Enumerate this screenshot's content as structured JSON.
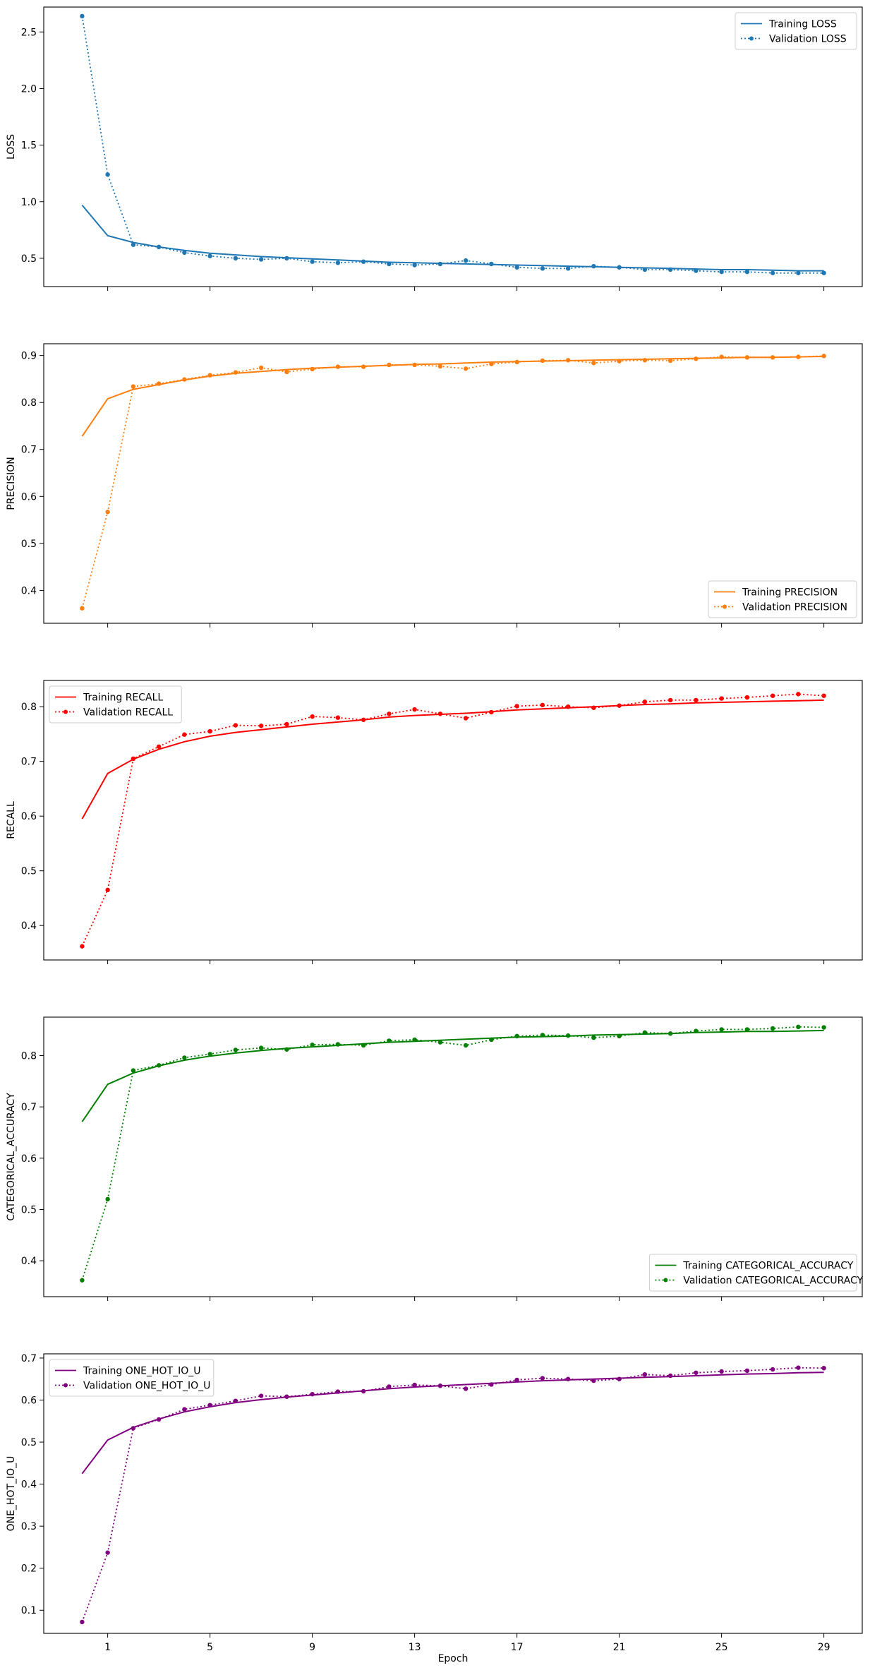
{
  "figure": {
    "xlabel": "Epoch",
    "xticks": [
      1,
      5,
      9,
      13,
      17,
      21,
      25,
      29
    ]
  },
  "chart_data": [
    {
      "type": "line",
      "ylabel": "LOSS",
      "color": "#1f77b4",
      "xlim": [
        -1.5,
        30.5
      ],
      "ylim": [
        0.25,
        2.72
      ],
      "yticks": [
        0.5,
        1.0,
        1.5,
        2.0,
        2.5
      ],
      "ytick_labels": [
        "0.5",
        "1.0",
        "1.5",
        "2.0",
        "2.5"
      ],
      "legend_loc": "upper-right",
      "x": [
        0,
        1,
        2,
        3,
        4,
        5,
        6,
        7,
        8,
        9,
        10,
        11,
        12,
        13,
        14,
        15,
        16,
        17,
        18,
        19,
        20,
        21,
        22,
        23,
        24,
        25,
        26,
        27,
        28,
        29
      ],
      "series": [
        {
          "name": "Training LOSS",
          "style": "solid",
          "values": [
            0.97,
            0.7,
            0.64,
            0.6,
            0.57,
            0.545,
            0.53,
            0.515,
            0.505,
            0.495,
            0.485,
            0.475,
            0.465,
            0.46,
            0.455,
            0.45,
            0.445,
            0.44,
            0.435,
            0.43,
            0.425,
            0.42,
            0.415,
            0.41,
            0.405,
            0.4,
            0.4,
            0.395,
            0.39,
            0.39
          ]
        },
        {
          "name": "Validation LOSS",
          "style": "dotted",
          "values": [
            2.64,
            1.24,
            0.62,
            0.6,
            0.55,
            0.52,
            0.5,
            0.49,
            0.5,
            0.47,
            0.46,
            0.47,
            0.45,
            0.44,
            0.45,
            0.48,
            0.45,
            0.42,
            0.41,
            0.41,
            0.43,
            0.42,
            0.4,
            0.4,
            0.39,
            0.38,
            0.38,
            0.37,
            0.37,
            0.37
          ]
        }
      ]
    },
    {
      "type": "line",
      "ylabel": "PRECISION",
      "color": "#ff7f0e",
      "xlim": [
        -1.5,
        30.5
      ],
      "ylim": [
        0.33,
        0.925
      ],
      "yticks": [
        0.4,
        0.5,
        0.6,
        0.7,
        0.8,
        0.9
      ],
      "ytick_labels": [
        "0.4",
        "0.5",
        "0.6",
        "0.7",
        "0.8",
        "0.9"
      ],
      "legend_loc": "lower-right",
      "x": [
        0,
        1,
        2,
        3,
        4,
        5,
        6,
        7,
        8,
        9,
        10,
        11,
        12,
        13,
        14,
        15,
        16,
        17,
        18,
        19,
        20,
        21,
        22,
        23,
        24,
        25,
        26,
        27,
        28,
        29
      ],
      "series": [
        {
          "name": "Training PRECISION",
          "style": "solid",
          "values": [
            0.728,
            0.808,
            0.828,
            0.838,
            0.848,
            0.856,
            0.862,
            0.866,
            0.87,
            0.873,
            0.875,
            0.877,
            0.879,
            0.881,
            0.882,
            0.884,
            0.886,
            0.887,
            0.888,
            0.889,
            0.89,
            0.891,
            0.892,
            0.893,
            0.894,
            0.895,
            0.896,
            0.896,
            0.897,
            0.898
          ]
        },
        {
          "name": "Validation PRECISION",
          "style": "dotted",
          "values": [
            0.362,
            0.567,
            0.834,
            0.84,
            0.849,
            0.858,
            0.864,
            0.874,
            0.865,
            0.871,
            0.876,
            0.876,
            0.88,
            0.88,
            0.877,
            0.872,
            0.882,
            0.886,
            0.889,
            0.89,
            0.884,
            0.888,
            0.89,
            0.889,
            0.893,
            0.897,
            0.896,
            0.896,
            0.897,
            0.899
          ]
        }
      ]
    },
    {
      "type": "line",
      "ylabel": "RECALL",
      "color": "#ff0000",
      "xlim": [
        -1.5,
        30.5
      ],
      "ylim": [
        0.337,
        0.848
      ],
      "yticks": [
        0.4,
        0.5,
        0.6,
        0.7,
        0.8
      ],
      "ytick_labels": [
        "0.4",
        "0.5",
        "0.6",
        "0.7",
        "0.8"
      ],
      "legend_loc": "upper-left",
      "x": [
        0,
        1,
        2,
        3,
        4,
        5,
        6,
        7,
        8,
        9,
        10,
        11,
        12,
        13,
        14,
        15,
        16,
        17,
        18,
        19,
        20,
        21,
        22,
        23,
        24,
        25,
        26,
        27,
        28,
        29
      ],
      "series": [
        {
          "name": "Training RECALL",
          "style": "solid",
          "values": [
            0.595,
            0.678,
            0.704,
            0.722,
            0.736,
            0.746,
            0.753,
            0.758,
            0.763,
            0.768,
            0.772,
            0.776,
            0.781,
            0.784,
            0.786,
            0.788,
            0.791,
            0.794,
            0.796,
            0.798,
            0.8,
            0.802,
            0.804,
            0.805,
            0.807,
            0.808,
            0.809,
            0.81,
            0.811,
            0.812
          ]
        },
        {
          "name": "Validation RECALL",
          "style": "dotted",
          "values": [
            0.362,
            0.465,
            0.705,
            0.727,
            0.749,
            0.755,
            0.766,
            0.765,
            0.768,
            0.782,
            0.78,
            0.776,
            0.787,
            0.795,
            0.787,
            0.779,
            0.79,
            0.801,
            0.803,
            0.8,
            0.798,
            0.802,
            0.809,
            0.812,
            0.812,
            0.815,
            0.817,
            0.82,
            0.823,
            0.82
          ]
        }
      ]
    },
    {
      "type": "line",
      "ylabel": "CATEGORICAL_ACCURACY",
      "color": "#008000",
      "xlim": [
        -1.5,
        30.5
      ],
      "ylim": [
        0.33,
        0.875
      ],
      "yticks": [
        0.4,
        0.5,
        0.6,
        0.7,
        0.8
      ],
      "ytick_labels": [
        "0.4",
        "0.5",
        "0.6",
        "0.7",
        "0.8"
      ],
      "legend_loc": "lower-right",
      "x": [
        0,
        1,
        2,
        3,
        4,
        5,
        6,
        7,
        8,
        9,
        10,
        11,
        12,
        13,
        14,
        15,
        16,
        17,
        18,
        19,
        20,
        21,
        22,
        23,
        24,
        25,
        26,
        27,
        28,
        29
      ],
      "series": [
        {
          "name": "Training CATEGORICAL_ACCURACY",
          "style": "solid",
          "values": [
            0.671,
            0.744,
            0.766,
            0.78,
            0.791,
            0.799,
            0.805,
            0.81,
            0.814,
            0.817,
            0.82,
            0.823,
            0.826,
            0.828,
            0.83,
            0.832,
            0.834,
            0.836,
            0.837,
            0.838,
            0.84,
            0.841,
            0.842,
            0.843,
            0.845,
            0.846,
            0.847,
            0.847,
            0.848,
            0.849
          ]
        },
        {
          "name": "Validation CATEGORICAL_ACCURACY",
          "style": "dotted",
          "values": [
            0.362,
            0.52,
            0.771,
            0.781,
            0.796,
            0.803,
            0.811,
            0.815,
            0.812,
            0.821,
            0.822,
            0.82,
            0.829,
            0.831,
            0.826,
            0.82,
            0.831,
            0.838,
            0.84,
            0.839,
            0.835,
            0.838,
            0.845,
            0.843,
            0.848,
            0.851,
            0.851,
            0.853,
            0.856,
            0.855
          ]
        }
      ]
    },
    {
      "type": "line",
      "ylabel": "ONE_HOT_IO_U",
      "color": "#800080",
      "xlim": [
        -1.5,
        30.5
      ],
      "ylim": [
        0.045,
        0.71
      ],
      "yticks": [
        0.1,
        0.2,
        0.3,
        0.4,
        0.5,
        0.6,
        0.7
      ],
      "ytick_labels": [
        "0.1",
        "0.2",
        "0.3",
        "0.4",
        "0.5",
        "0.6",
        "0.7"
      ],
      "legend_loc": "upper-left",
      "x": [
        0,
        1,
        2,
        3,
        4,
        5,
        6,
        7,
        8,
        9,
        10,
        11,
        12,
        13,
        14,
        15,
        16,
        17,
        18,
        19,
        20,
        21,
        22,
        23,
        24,
        25,
        26,
        27,
        28,
        29
      ],
      "series": [
        {
          "name": "Training ONE_HOT_IO_U",
          "style": "solid",
          "values": [
            0.425,
            0.505,
            0.535,
            0.555,
            0.572,
            0.584,
            0.594,
            0.601,
            0.607,
            0.612,
            0.617,
            0.622,
            0.627,
            0.631,
            0.634,
            0.637,
            0.64,
            0.643,
            0.646,
            0.648,
            0.65,
            0.652,
            0.654,
            0.656,
            0.658,
            0.66,
            0.662,
            0.663,
            0.665,
            0.666
          ]
        },
        {
          "name": "Validation ONE_HOT_IO_U",
          "style": "dotted",
          "values": [
            0.072,
            0.237,
            0.533,
            0.554,
            0.578,
            0.588,
            0.598,
            0.61,
            0.608,
            0.614,
            0.62,
            0.621,
            0.632,
            0.636,
            0.634,
            0.627,
            0.637,
            0.648,
            0.652,
            0.65,
            0.646,
            0.65,
            0.661,
            0.658,
            0.665,
            0.668,
            0.67,
            0.673,
            0.677,
            0.676
          ]
        }
      ]
    }
  ]
}
